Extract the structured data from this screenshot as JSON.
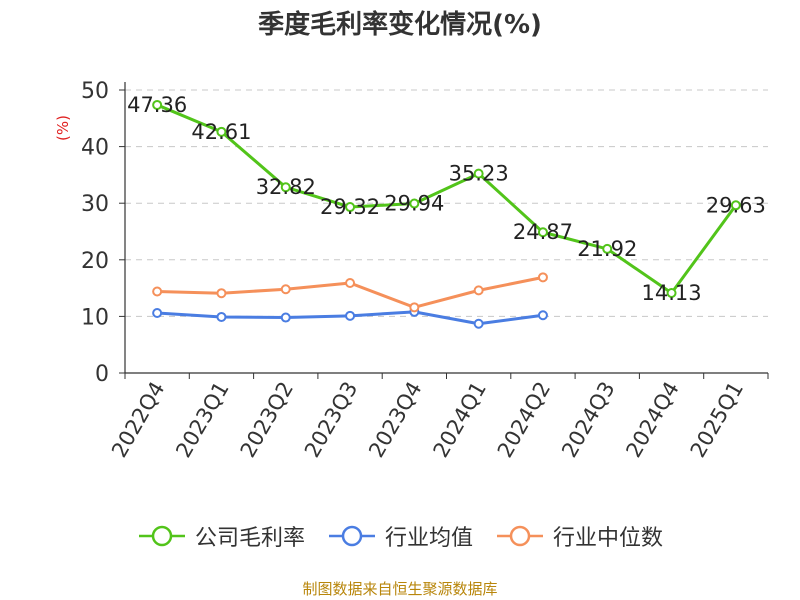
{
  "chart_data": {
    "type": "line",
    "title": "季度毛利率变化情况(%)",
    "ylabel": "(%)",
    "categories": [
      "2022Q4",
      "2023Q1",
      "2023Q2",
      "2023Q3",
      "2023Q4",
      "2024Q1",
      "2024Q2",
      "2024Q3",
      "2024Q4",
      "2025Q1"
    ],
    "yticks": [
      0,
      10,
      20,
      30,
      40,
      50
    ],
    "ylim": [
      0,
      50
    ],
    "grid": true,
    "legend_position": "bottom",
    "series": [
      {
        "name": "公司毛利率",
        "color": "#52c41a",
        "show_labels": true,
        "values": [
          47.36,
          42.61,
          32.82,
          29.32,
          29.94,
          35.23,
          24.87,
          21.92,
          14.13,
          29.63
        ]
      },
      {
        "name": "行业均值",
        "color": "#4a7de2",
        "show_labels": false,
        "values": [
          10.6,
          9.9,
          9.8,
          10.1,
          10.8,
          8.7,
          10.2,
          null,
          null,
          null
        ]
      },
      {
        "name": "行业中位数",
        "color": "#f5905a",
        "show_labels": false,
        "values": [
          14.4,
          14.1,
          14.8,
          15.9,
          11.6,
          14.6,
          16.9,
          null,
          null,
          null
        ]
      }
    ],
    "source": "制图数据来自恒生聚源数据库"
  }
}
